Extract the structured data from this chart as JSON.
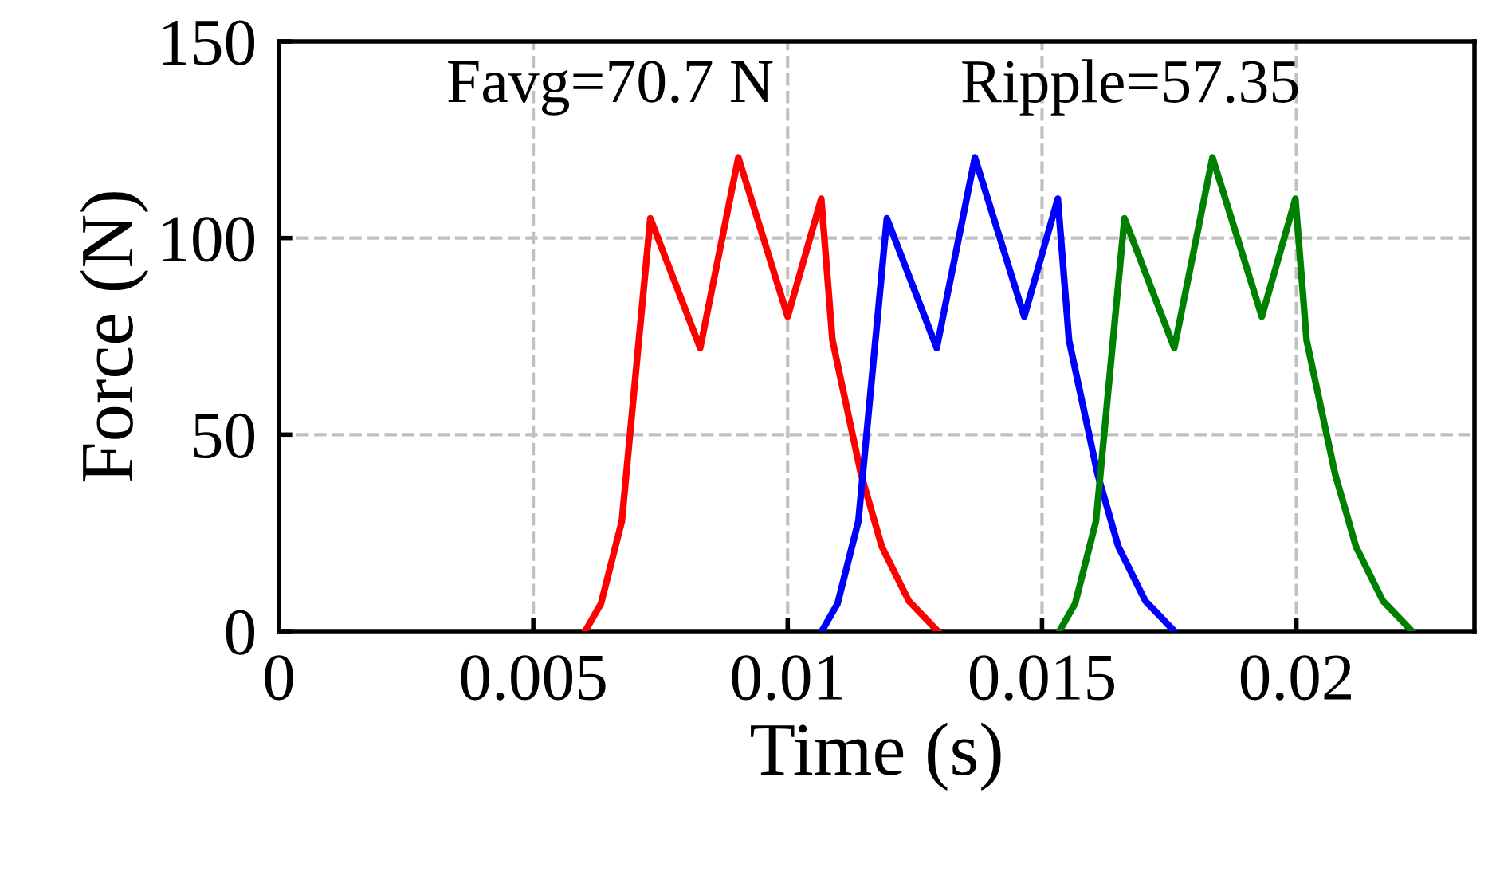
{
  "chart_data": {
    "type": "line",
    "xlabel": "Time (s)",
    "ylabel": "Force (N)",
    "annotations": [
      "Favg=70.7 N",
      "Ripple=57.35"
    ],
    "series": [
      {
        "color": "#ff0000",
        "x": [
          0.00602,
          0.00633,
          0.00674,
          0.0073,
          0.00828,
          0.00903,
          0.01,
          0.01066,
          0.01088,
          0.01144,
          0.01185,
          0.01238,
          0.01295
        ],
        "values": [
          0,
          7,
          28,
          105,
          72,
          120.5,
          80,
          110,
          74,
          40,
          21.5,
          7.7,
          0
        ]
      },
      {
        "color": "#0000ff",
        "x": [
          0.01067,
          0.01098,
          0.01139,
          0.01195,
          0.01293,
          0.01368,
          0.01465,
          0.01531,
          0.01553,
          0.01609,
          0.0165,
          0.01703,
          0.0176
        ],
        "values": [
          0,
          7,
          28,
          105,
          72,
          120.5,
          80,
          110,
          74,
          40,
          21.5,
          7.7,
          0
        ]
      },
      {
        "color": "#008000",
        "x": [
          0.01534,
          0.01565,
          0.01606,
          0.01662,
          0.0176,
          0.01835,
          0.01932,
          0.01998,
          0.0202,
          0.02076,
          0.02117,
          0.0217,
          0.02227
        ],
        "values": [
          0,
          7,
          28,
          105,
          72,
          120.5,
          80,
          110,
          74,
          40,
          21.5,
          7.7,
          0
        ]
      }
    ],
    "xlim": [
      0,
      0.0235
    ],
    "ylim": [
      0,
      150
    ],
    "xticks": [
      0,
      0.005,
      0.01,
      0.015,
      0.02
    ],
    "yticks": [
      0,
      50,
      100,
      150
    ],
    "grid": true,
    "line_style": "solid",
    "marker": "none",
    "legend": false
  }
}
